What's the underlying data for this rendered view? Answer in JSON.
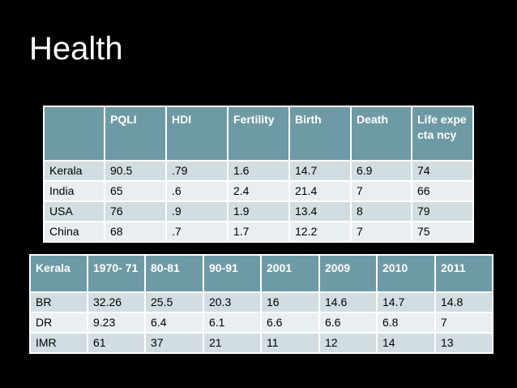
{
  "slide": {
    "title": "Health"
  },
  "table1": {
    "headers": [
      "",
      "PQLI",
      "HDI",
      "Fertility",
      "Birth",
      "Death",
      "Life expecta ncy"
    ],
    "rows": [
      [
        "Kerala",
        "90.5",
        ".79",
        "1.6",
        "14.7",
        "6.9",
        "74"
      ],
      [
        "India",
        "65",
        ".6",
        "2.4",
        "21.4",
        "7",
        "66"
      ],
      [
        "USA",
        "76",
        ".9",
        "1.9",
        "13.4",
        "8",
        "79"
      ],
      [
        "China",
        "68",
        ".7",
        "1.7",
        "12.2",
        "7",
        "75"
      ]
    ]
  },
  "table2": {
    "headers": [
      "Kerala",
      "1970- 71",
      "80-81",
      "90-91",
      "2001",
      "2009",
      "2010",
      "2011"
    ],
    "rows": [
      [
        "BR",
        "32.26",
        "25.5",
        "20.3",
        "16",
        "14.6",
        "14.7",
        "14.8"
      ],
      [
        "DR",
        "9.23",
        "6.4",
        "6.1",
        "6.6",
        "6.6",
        "6.8",
        "7"
      ],
      [
        "IMR",
        "61",
        "37",
        "21",
        "11",
        "12",
        "14",
        "13"
      ]
    ]
  },
  "colors": {
    "background": "#000000",
    "header_fill": "#6e9aa6",
    "row_odd": "#d1dde1",
    "row_even": "#e9eef0",
    "title_text": "#ffffff"
  }
}
